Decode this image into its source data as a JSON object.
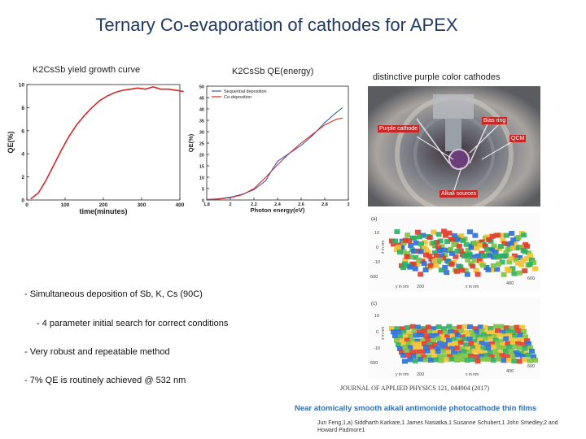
{
  "title": "Ternary Co-evaporation of cathodes for APEX",
  "captions": {
    "left": "K2CsSb yield growth curve",
    "middle": "K2CsSb QE(energy)",
    "right": "distinctive purple color cathodes"
  },
  "bullets": [
    "- Simultaneous deposition of Sb, K, Cs (90C)",
    "- 4 parameter initial search for correct conditions",
    "- Very robust and repeatable method",
    "- 7% QE is routinely achieved @ 532 nm"
  ],
  "photo_labels": {
    "bias_ring": "Bias ring",
    "purple_cathode": "Purple cathode",
    "qcm": "QCM",
    "alkali_sources": "Alkali sources"
  },
  "surface_plots": {
    "a": {
      "tag": "(a)",
      "z_label": "z in nm",
      "x_label": "x in nm",
      "y_label": "y in nm",
      "z_ticks": [
        "10",
        "0",
        "-10"
      ],
      "x_ticks": [
        "200",
        "400",
        "600"
      ],
      "y_ticks": [
        "600",
        "400",
        "200"
      ]
    },
    "c": {
      "tag": "(c)",
      "z_label": "z in nm",
      "x_label": "x in nm",
      "y_label": "y in nm",
      "z_ticks": [
        "10",
        "0",
        "-10"
      ],
      "x_ticks": [
        "200",
        "400",
        "600"
      ],
      "y_ticks": [
        "600",
        "400",
        "200"
      ]
    }
  },
  "citation": {
    "journal": "JOURNAL OF APPLIED PHYSICS 121, 044904 (2017)",
    "paper_title": "Near atomically smooth alkali antimonide photocathode thin films",
    "authors": "Jun Feng,1,a) Siddharth Karkare,1 James Nasiatka,1 Susanne Schubert,1 John Smedley,2 and Howard Padmore1"
  },
  "colors": {
    "title": "#1f3864",
    "curve_red": "#d62728",
    "curve_blue": "#3b5fb0",
    "citation_blue": "#2f6fb7"
  },
  "chart_data": [
    {
      "type": "line",
      "xlabel": "time(minutes)",
      "ylabel": "QE(%)",
      "xlim": [
        0,
        400
      ],
      "ylim": [
        0,
        10
      ],
      "x_ticks": [
        0,
        100,
        200,
        300,
        400
      ],
      "y_ticks": [
        0,
        2,
        4,
        6,
        8,
        10
      ],
      "series": [
        {
          "color": "#d62728",
          "x": [
            10,
            30,
            50,
            70,
            90,
            110,
            130,
            150,
            170,
            190,
            210,
            230,
            250,
            270,
            290,
            310,
            330,
            350,
            370,
            390,
            410
          ],
          "y": [
            0.1,
            0.6,
            1.7,
            3.0,
            4.3,
            5.5,
            6.5,
            7.3,
            8.0,
            8.6,
            9.0,
            9.3,
            9.5,
            9.6,
            9.7,
            9.6,
            9.8,
            9.6,
            9.6,
            9.5,
            9.4
          ]
        }
      ]
    },
    {
      "type": "line",
      "xlabel": "Photon energy(eV)",
      "ylabel": "QE(%)",
      "xlim": [
        1.8,
        3.0
      ],
      "ylim": [
        0,
        50
      ],
      "x_ticks": [
        1.8,
        2.0,
        2.2,
        2.4,
        2.6,
        2.8,
        3.0
      ],
      "y_ticks": [
        0,
        5,
        10,
        15,
        20,
        25,
        30,
        35,
        40,
        45,
        50
      ],
      "legend": "top-left",
      "series": [
        {
          "name": "Sequential deposition",
          "color": "#3b5fb0",
          "x": [
            1.8,
            1.9,
            2.0,
            2.1,
            2.2,
            2.3,
            2.35,
            2.4,
            2.5,
            2.6,
            2.7,
            2.8,
            2.9,
            2.95
          ],
          "y": [
            0.2,
            0.5,
            1.2,
            2.5,
            4.5,
            8.5,
            13.0,
            17.0,
            20.5,
            24.0,
            28.5,
            34.0,
            38.5,
            40.5
          ]
        },
        {
          "name": "Co-deposition",
          "color": "#d62728",
          "x": [
            1.8,
            1.9,
            2.0,
            2.1,
            2.2,
            2.3,
            2.4,
            2.5,
            2.6,
            2.7,
            2.8,
            2.9,
            2.95
          ],
          "y": [
            0.2,
            0.4,
            1.0,
            2.3,
            5.0,
            10.0,
            15.5,
            20.5,
            25.0,
            29.0,
            33.0,
            35.5,
            36.0
          ]
        }
      ]
    }
  ]
}
